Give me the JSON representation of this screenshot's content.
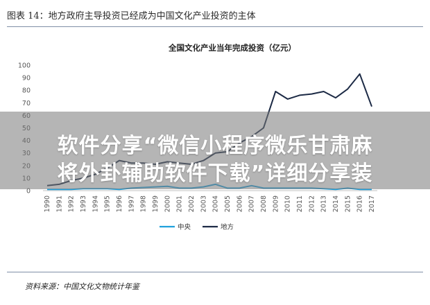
{
  "figure": {
    "title": "图表 14：地方政府主导投资已经成为中国文化产业投资的主体",
    "source": "资料来源：中国文化文物统计年鉴"
  },
  "overlay": {
    "line1": "软件分享“微信小程序微乐甘肃麻",
    "line2": "将外卦辅助软件下载”详细分享装"
  },
  "chart_data": {
    "type": "line",
    "title": "全国文化产业当年完成投资（亿元）",
    "xlabel": "",
    "ylabel": "",
    "ylim": [
      0,
      100
    ],
    "yticks": [
      0,
      10,
      20,
      30,
      40,
      50,
      60,
      70,
      80,
      90,
      100
    ],
    "grid": false,
    "legend": "bottom",
    "x": [
      "1990",
      "1991",
      "1992",
      "1993",
      "1994",
      "1995",
      "1996",
      "1997",
      "1998",
      "1999",
      "2000",
      "2001",
      "2002",
      "2003",
      "2004",
      "2005",
      "2006",
      "2007",
      "2008",
      "2009",
      "2010",
      "2011",
      "2012",
      "2013",
      "2014",
      "2015",
      "2016",
      "2017"
    ],
    "series": [
      {
        "name": "中央",
        "color": "#1fa0dc",
        "values": [
          1,
          1,
          1,
          1.5,
          1.5,
          1.5,
          1,
          2,
          2.5,
          3,
          3.5,
          2,
          2,
          3,
          5,
          2,
          2,
          4,
          2,
          2,
          2,
          2,
          2,
          1.5,
          1,
          2,
          1,
          1
        ]
      },
      {
        "name": "地方",
        "color": "#1c2a45",
        "values": [
          4,
          5,
          8,
          10,
          13,
          18,
          24,
          22,
          22,
          21,
          23,
          22,
          21,
          24,
          30,
          31,
          38,
          43,
          50,
          79,
          73,
          76,
          77,
          79,
          74,
          81,
          93,
          67
        ]
      }
    ]
  },
  "colors": {
    "central": "#1fa0dc",
    "local": "#1c2a45",
    "overlay": "#7a7a7a"
  }
}
